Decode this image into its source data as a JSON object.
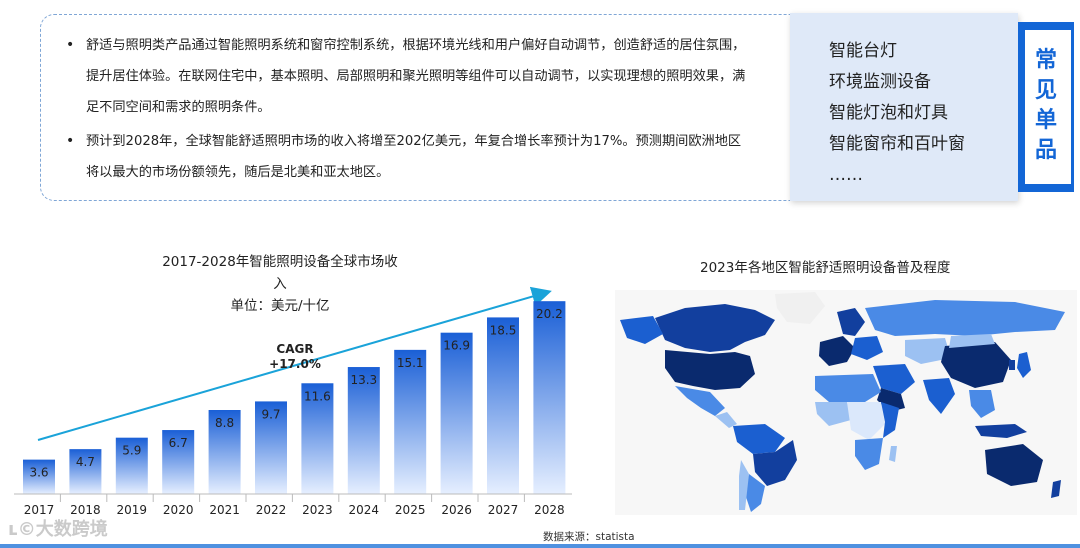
{
  "intro": {
    "bullets": [
      "舒适与照明类产品通过智能照明系统和窗帘控制系统，根据环境光线和用户偏好自动调节，创造舒适的居住氛围，提升居住体验。在联网住宅中，基本照明、局部照明和聚光照明等组件可以自动调节，以实现理想的照明效果，满足不同空间和需求的照明条件。",
      "预计到2028年，全球智能舒适照明市场的收入将增至202亿美元，年复合增长率预计为17%。预测期间欧洲地区将以最大的市场份额领先，随后是北美和亚太地区。"
    ]
  },
  "products": {
    "title": "常见单品",
    "items": [
      "智能台灯",
      "环境监测设备",
      "智能灯泡和灯具",
      "智能窗帘和百叶窗",
      "……"
    ]
  },
  "chart_data": {
    "type": "bar",
    "title": "2017-2028年智能照明设备全球市场收入",
    "subtitle": "单位：美元/十亿",
    "categories": [
      "2017",
      "2018",
      "2019",
      "2020",
      "2021",
      "2022",
      "2023",
      "2024",
      "2025",
      "2026",
      "2027",
      "2028"
    ],
    "values": [
      3.6,
      4.7,
      5.9,
      6.7,
      8.8,
      9.7,
      11.6,
      13.3,
      15.1,
      16.9,
      18.5,
      20.2
    ],
    "annotation": "CAGR +17.0%",
    "annotation_lines": [
      "CAGR",
      "+17.0%"
    ],
    "ylim": [
      0,
      22
    ],
    "bar_gradient": [
      "#1a5fd6",
      "#e6efff"
    ],
    "arrow_color": "#1aa3d9"
  },
  "map": {
    "title": "2023年各地区智能舒适照明设备普及程度",
    "colors": [
      "#0a2a6e",
      "#123f9e",
      "#1b5fd0",
      "#4a8ae6",
      "#9cc1f2",
      "#dbe8fb",
      "#f0f0f0"
    ]
  },
  "source": "数据来源：statista",
  "watermark": "大数跨境"
}
